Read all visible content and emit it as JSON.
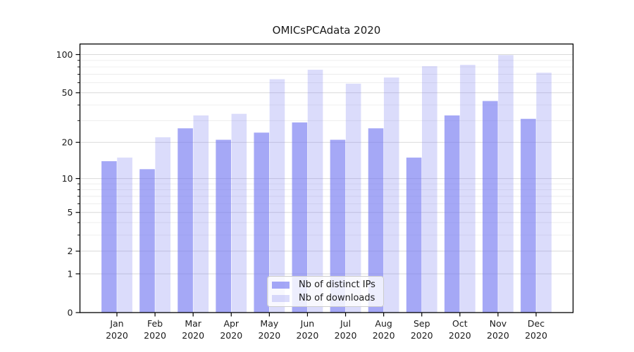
{
  "chart_data": {
    "type": "bar",
    "title": "OMICsPCAdata 2020",
    "categories": [
      "Jan",
      "Feb",
      "Mar",
      "Apr",
      "May",
      "Jun",
      "Jul",
      "Aug",
      "Sep",
      "Oct",
      "Nov",
      "Dec"
    ],
    "category_second_line": "2020",
    "series": [
      {
        "name": "Nb of distinct IPs",
        "color": "rgba(110,114,240,0.62)",
        "values": [
          14,
          12,
          26,
          21,
          24,
          29,
          21,
          26,
          15,
          33,
          43,
          31
        ]
      },
      {
        "name": "Nb of downloads",
        "color": "rgba(110,114,240,0.25)",
        "values": [
          15,
          22,
          33,
          34,
          64,
          76,
          59,
          66,
          81,
          83,
          99,
          72
        ]
      }
    ],
    "xlabel": "",
    "ylabel": "",
    "y_scale": "log1p",
    "y_ticks": [
      0,
      1,
      2,
      5,
      10,
      20,
      50,
      100
    ],
    "y_minor_ticks": [
      3,
      4,
      6,
      7,
      8,
      9,
      30,
      40,
      60,
      70,
      80,
      90
    ],
    "y_top_value": 121,
    "grid": "horizontal",
    "legend_position": "lower center",
    "colors": {
      "axis": "#000000",
      "tick_label": "#1a1a1a",
      "grid_major": "#d9d9d9",
      "grid_minor": "#ececec",
      "plot_background": "#ffffff"
    }
  }
}
